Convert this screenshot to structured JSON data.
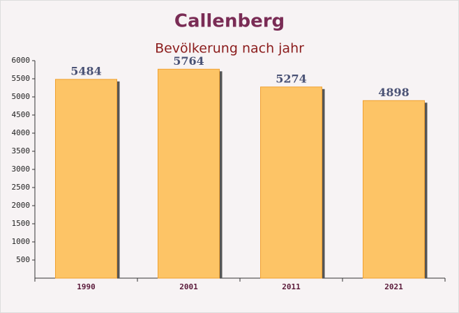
{
  "chart_data": {
    "type": "bar",
    "title": "Callenberg",
    "subtitle": "Bevölkerung nach jahr",
    "categories": [
      "1990",
      "2001",
      "2011",
      "2021"
    ],
    "values": [
      5484,
      5764,
      5274,
      4898
    ],
    "color": "#fdc466",
    "ylim": [
      0,
      6000
    ],
    "yticks": [
      500,
      1000,
      1500,
      2000,
      2500,
      3000,
      3500,
      4000,
      4500,
      5000,
      5500,
      6000
    ]
  }
}
